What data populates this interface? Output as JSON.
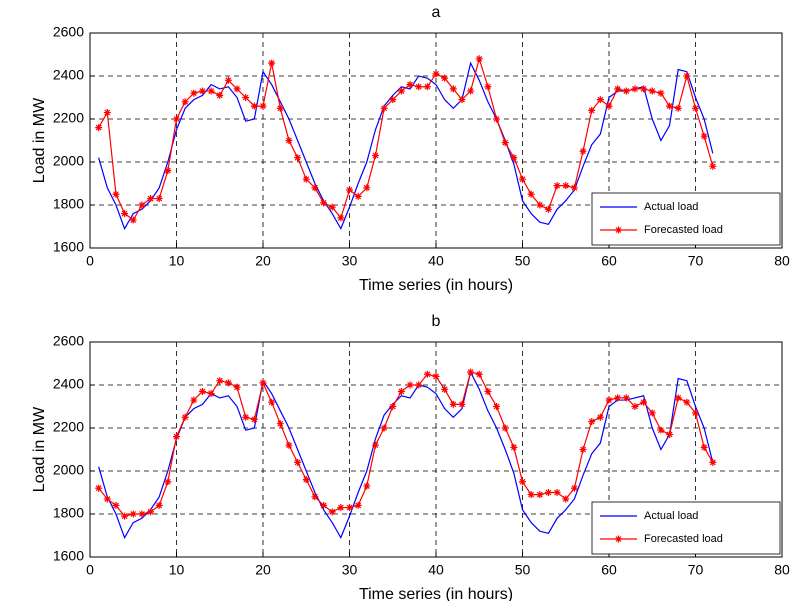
{
  "chart_data": [
    {
      "type": "line",
      "title": "a",
      "x_label": "Time series (in hours)",
      "y_label": "Load in MW",
      "x": [
        1,
        2,
        3,
        4,
        5,
        6,
        7,
        8,
        9,
        10,
        11,
        12,
        13,
        14,
        15,
        16,
        17,
        18,
        19,
        20,
        21,
        22,
        23,
        24,
        25,
        26,
        27,
        28,
        29,
        30,
        31,
        32,
        33,
        34,
        35,
        36,
        37,
        38,
        39,
        40,
        41,
        42,
        43,
        44,
        45,
        46,
        47,
        48,
        49,
        50,
        51,
        52,
        53,
        54,
        55,
        56,
        57,
        58,
        59,
        60,
        61,
        62,
        63,
        64,
        65,
        66,
        67,
        68,
        69,
        70,
        71,
        72
      ],
      "series": [
        {
          "name": "Actual load",
          "color": "#0000ff",
          "marker": false,
          "values": [
            2020,
            1880,
            1800,
            1690,
            1760,
            1780,
            1820,
            1880,
            2000,
            2150,
            2250,
            2290,
            2310,
            2360,
            2340,
            2350,
            2300,
            2190,
            2200,
            2420,
            2360,
            2280,
            2200,
            2100,
            2000,
            1900,
            1820,
            1760,
            1690,
            1790,
            1900,
            2000,
            2150,
            2260,
            2310,
            2350,
            2340,
            2400,
            2390,
            2360,
            2290,
            2250,
            2290,
            2460,
            2380,
            2280,
            2200,
            2100,
            1990,
            1820,
            1760,
            1720,
            1710,
            1780,
            1820,
            1870,
            1980,
            2080,
            2130,
            2300,
            2330,
            2330,
            2340,
            2350,
            2200,
            2100,
            2170,
            2430,
            2420,
            2300,
            2200,
            2040
          ]
        },
        {
          "name": "Forecasted load",
          "color": "#ff0000",
          "marker": true,
          "values": [
            2160,
            2230,
            1850,
            1760,
            1730,
            1800,
            1830,
            1830,
            1960,
            2200,
            2280,
            2320,
            2330,
            2330,
            2310,
            2380,
            2340,
            2300,
            2260,
            2260,
            2460,
            2250,
            2100,
            2020,
            1920,
            1880,
            1810,
            1790,
            1740,
            1870,
            1840,
            1880,
            2030,
            2250,
            2290,
            2330,
            2360,
            2350,
            2350,
            2410,
            2390,
            2340,
            2290,
            2330,
            2480,
            2350,
            2200,
            2090,
            2020,
            1920,
            1850,
            1800,
            1780,
            1890,
            1890,
            1880,
            2050,
            2240,
            2290,
            2260,
            2340,
            2330,
            2340,
            2340,
            2330,
            2320,
            2260,
            2250,
            2400,
            2250,
            2120,
            1980
          ]
        }
      ],
      "xlim": [
        0,
        80
      ],
      "xticks": [
        0,
        10,
        20,
        30,
        40,
        50,
        60,
        70,
        80
      ],
      "ylim": [
        1600,
        2600
      ],
      "yticks": [
        1600,
        1800,
        2000,
        2200,
        2400,
        2600
      ],
      "grid": true,
      "legend": "lower-right"
    },
    {
      "type": "line",
      "title": "b",
      "x_label": "Time series (in hours)",
      "y_label": "Load in MW",
      "x": [
        1,
        2,
        3,
        4,
        5,
        6,
        7,
        8,
        9,
        10,
        11,
        12,
        13,
        14,
        15,
        16,
        17,
        18,
        19,
        20,
        21,
        22,
        23,
        24,
        25,
        26,
        27,
        28,
        29,
        30,
        31,
        32,
        33,
        34,
        35,
        36,
        37,
        38,
        39,
        40,
        41,
        42,
        43,
        44,
        45,
        46,
        47,
        48,
        49,
        50,
        51,
        52,
        53,
        54,
        55,
        56,
        57,
        58,
        59,
        60,
        61,
        62,
        63,
        64,
        65,
        66,
        67,
        68,
        69,
        70,
        71,
        72
      ],
      "series": [
        {
          "name": "Actual load",
          "color": "#0000ff",
          "marker": false,
          "values": [
            2020,
            1880,
            1800,
            1690,
            1760,
            1780,
            1820,
            1880,
            2000,
            2150,
            2250,
            2290,
            2310,
            2360,
            2340,
            2350,
            2300,
            2190,
            2200,
            2420,
            2360,
            2280,
            2200,
            2100,
            2000,
            1900,
            1820,
            1760,
            1690,
            1790,
            1900,
            2000,
            2150,
            2260,
            2310,
            2350,
            2340,
            2400,
            2390,
            2360,
            2290,
            2250,
            2290,
            2460,
            2380,
            2280,
            2200,
            2100,
            1990,
            1820,
            1760,
            1720,
            1710,
            1780,
            1820,
            1870,
            1980,
            2080,
            2130,
            2300,
            2330,
            2330,
            2340,
            2350,
            2200,
            2100,
            2170,
            2430,
            2420,
            2300,
            2200,
            2040
          ]
        },
        {
          "name": "Forecasted load",
          "color": "#ff0000",
          "marker": true,
          "values": [
            1920,
            1870,
            1840,
            1790,
            1800,
            1800,
            1810,
            1840,
            1950,
            2160,
            2250,
            2330,
            2370,
            2360,
            2420,
            2410,
            2390,
            2250,
            2240,
            2410,
            2320,
            2220,
            2120,
            2040,
            1960,
            1880,
            1840,
            1810,
            1830,
            1830,
            1840,
            1930,
            2120,
            2200,
            2300,
            2370,
            2400,
            2400,
            2450,
            2440,
            2380,
            2310,
            2310,
            2460,
            2450,
            2370,
            2300,
            2200,
            2110,
            1950,
            1890,
            1890,
            1900,
            1900,
            1870,
            1920,
            2100,
            2230,
            2250,
            2330,
            2340,
            2340,
            2300,
            2320,
            2270,
            2190,
            2170,
            2340,
            2320,
            2270,
            2110,
            2040
          ]
        }
      ],
      "xlim": [
        0,
        80
      ],
      "xticks": [
        0,
        10,
        20,
        30,
        40,
        50,
        60,
        70,
        80
      ],
      "ylim": [
        1600,
        2600
      ],
      "yticks": [
        1600,
        1800,
        2000,
        2200,
        2400,
        2600
      ],
      "grid": true,
      "legend": "lower-right"
    }
  ]
}
